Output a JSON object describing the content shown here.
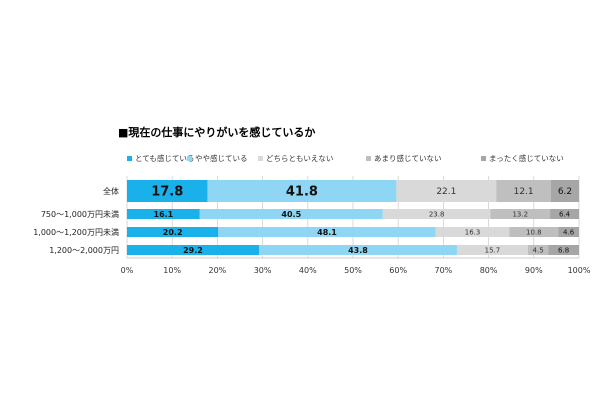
{
  "chart_data": {
    "type": "bar",
    "stacked": true,
    "orientation": "horizontal",
    "title": "■現在の仕事にやりがいを感じているか",
    "categories": [
      "全体",
      "750～1,000万円未満",
      "1,000～1,200万円未満",
      "1,200～2,000万円"
    ],
    "series": [
      {
        "name": "とても感じている",
        "values": [
          17.8,
          16.1,
          20.2,
          29.2
        ],
        "color": "#1ab1ea",
        "label_color": "#111111"
      },
      {
        "name": "やや感じている",
        "values": [
          41.8,
          40.5,
          48.1,
          43.8
        ],
        "color": "#8fd6f5",
        "label_color": "#111111"
      },
      {
        "name": "どちらともいえない",
        "values": [
          22.1,
          23.8,
          16.3,
          15.7
        ],
        "color": "#d9d9d9",
        "label_color": "#333333"
      },
      {
        "name": "あまり感じていない",
        "values": [
          12.1,
          13.2,
          10.8,
          4.5
        ],
        "color": "#bfbfbf",
        "label_color": "#333333"
      },
      {
        "name": "まったく感じていない",
        "values": [
          6.2,
          6.4,
          4.6,
          6.8
        ],
        "color": "#a6a6a6",
        "label_color": "#111111"
      }
    ],
    "xlim": [
      0,
      100
    ],
    "xticks": [
      "0%",
      "10%",
      "20%",
      "30%",
      "40%",
      "50%",
      "60%",
      "70%",
      "80%",
      "90%",
      "100%"
    ],
    "grid": true,
    "legend_position": "top"
  }
}
